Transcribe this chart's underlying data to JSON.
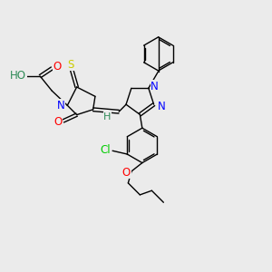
{
  "bg_color": "#ebebeb",
  "bond_color": "#000000",
  "lw": 1.0,
  "atom_colors": {
    "N": "#0000ff",
    "O": "#ff0000",
    "S": "#cccc00",
    "Cl": "#00cc00",
    "H": "#2e8b57",
    "HO": "#2e8b57"
  },
  "fontsize": 8.5
}
